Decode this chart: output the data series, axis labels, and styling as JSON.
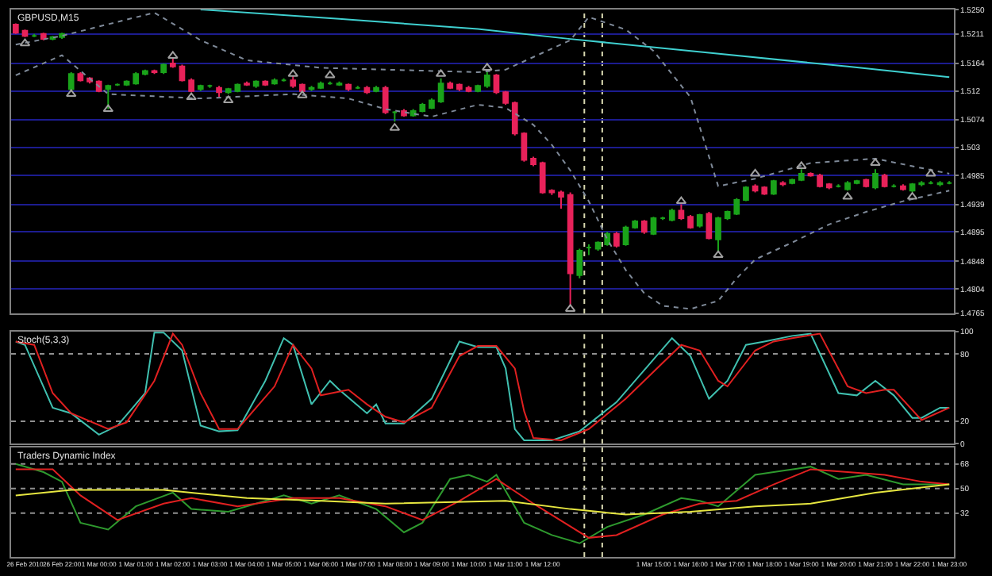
{
  "chart_data": [
    {
      "type": "candlestick",
      "title": "GBPUSD,M15",
      "ohlc": [
        [
          1.5226,
          1.5228,
          1.5211,
          1.5213
        ],
        [
          1.5216,
          1.5218,
          1.5206,
          1.5208
        ],
        [
          1.5208,
          1.5211,
          1.5206,
          1.5208
        ],
        [
          1.5211,
          1.5213,
          1.5201,
          1.5203
        ],
        [
          1.5203,
          1.5208,
          1.5201,
          1.5206
        ],
        [
          1.5206,
          1.5213,
          1.5203,
          1.5211
        ],
        [
          1.5123,
          1.515,
          1.512,
          1.5147
        ],
        [
          1.5147,
          1.515,
          1.5135,
          1.5137
        ],
        [
          1.514,
          1.5142,
          1.5132,
          1.5135
        ],
        [
          1.5135,
          1.5137,
          1.5118,
          1.512
        ],
        [
          1.5123,
          1.513,
          1.5091,
          1.5128
        ],
        [
          1.513,
          1.5132,
          1.5128,
          1.513
        ],
        [
          1.513,
          1.5137,
          1.5128,
          1.5135
        ],
        [
          1.5132,
          1.515,
          1.513,
          1.5147
        ],
        [
          1.5147,
          1.5154,
          1.5145,
          1.5152
        ],
        [
          1.5152,
          1.5154,
          1.5147,
          1.515
        ],
        [
          1.515,
          1.5164,
          1.5147,
          1.5162
        ],
        [
          1.5164,
          1.5172,
          1.5157,
          1.5159
        ],
        [
          1.5159,
          1.5162,
          1.5135,
          1.5137
        ],
        [
          1.5137,
          1.514,
          1.5118,
          1.512
        ],
        [
          1.5123,
          1.513,
          1.512,
          1.5128
        ],
        [
          1.5128,
          1.513,
          1.5125,
          1.5128
        ],
        [
          1.5125,
          1.5128,
          1.511,
          1.5118
        ],
        [
          1.5118,
          1.5125,
          1.5115,
          1.5123
        ],
        [
          1.512,
          1.5132,
          1.5118,
          1.513
        ],
        [
          1.5132,
          1.5135,
          1.5128,
          1.513
        ],
        [
          1.5128,
          1.5137,
          1.5125,
          1.5135
        ],
        [
          1.5135,
          1.5137,
          1.5128,
          1.513
        ],
        [
          1.5132,
          1.514,
          1.513,
          1.5137
        ],
        [
          1.5137,
          1.514,
          1.5135,
          1.5137
        ],
        [
          1.5137,
          1.5145,
          1.5125,
          1.5128
        ],
        [
          1.513,
          1.5132,
          1.5118,
          1.512
        ],
        [
          1.5123,
          1.5128,
          1.512,
          1.5125
        ],
        [
          1.5125,
          1.5135,
          1.5123,
          1.5132
        ],
        [
          1.5132,
          1.5135,
          1.513,
          1.5132
        ],
        [
          1.513,
          1.5135,
          1.5128,
          1.5132
        ],
        [
          1.513,
          1.5132,
          1.512,
          1.5123
        ],
        [
          1.5125,
          1.5128,
          1.5123,
          1.5125
        ],
        [
          1.5125,
          1.5128,
          1.5115,
          1.5118
        ],
        [
          1.512,
          1.5128,
          1.5118,
          1.5125
        ],
        [
          1.5125,
          1.5128,
          1.5083,
          1.5086
        ],
        [
          1.5086,
          1.5088,
          1.5071,
          1.5086
        ],
        [
          1.5088,
          1.5091,
          1.5079,
          1.5081
        ],
        [
          1.5081,
          1.5091,
          1.5079,
          1.5088
        ],
        [
          1.5088,
          1.5101,
          1.5086,
          1.5098
        ],
        [
          1.5093,
          1.5108,
          1.5091,
          1.5105
        ],
        [
          1.5103,
          1.514,
          1.5101,
          1.5132
        ],
        [
          1.5132,
          1.5135,
          1.5123,
          1.5125
        ],
        [
          1.513,
          1.5132,
          1.512,
          1.5123
        ],
        [
          1.5125,
          1.5128,
          1.5118,
          1.512
        ],
        [
          1.512,
          1.513,
          1.5118,
          1.5128
        ],
        [
          1.5128,
          1.5152,
          1.5125,
          1.5145
        ],
        [
          1.5145,
          1.5147,
          1.5115,
          1.5118
        ],
        [
          1.5118,
          1.512,
          1.5098,
          1.5101
        ],
        [
          1.5101,
          1.5103,
          1.5049,
          1.5052
        ],
        [
          1.5052,
          1.5054,
          1.5007,
          1.501
        ],
        [
          1.5012,
          1.5015,
          1.5,
          1.5003
        ],
        [
          1.5005,
          1.5007,
          1.4956,
          1.4958
        ],
        [
          1.4961,
          1.4963,
          1.4954,
          1.4958
        ],
        [
          1.4958,
          1.4961,
          1.4932,
          1.4951
        ],
        [
          1.4954,
          1.4958,
          1.4777,
          1.4829
        ],
        [
          1.4826,
          1.4868,
          1.4821,
          1.4865
        ],
        [
          1.487,
          1.4875,
          1.4858,
          1.487
        ],
        [
          1.4868,
          1.488,
          1.4865,
          1.4878
        ],
        [
          1.4875,
          1.4895,
          1.4873,
          1.4892
        ],
        [
          1.4892,
          1.4895,
          1.487,
          1.4873
        ],
        [
          1.4875,
          1.4905,
          1.4873,
          1.4902
        ],
        [
          1.4902,
          1.4914,
          1.49,
          1.4912
        ],
        [
          1.4912,
          1.4914,
          1.4892,
          1.4895
        ],
        [
          1.4892,
          1.4919,
          1.489,
          1.4917
        ],
        [
          1.4917,
          1.4919,
          1.4914,
          1.4917
        ],
        [
          1.4914,
          1.4932,
          1.4912,
          1.4929
        ],
        [
          1.4929,
          1.4939,
          1.4914,
          1.4917
        ],
        [
          1.4919,
          1.4922,
          1.49,
          1.4902
        ],
        [
          1.4905,
          1.4924,
          1.4902,
          1.4922
        ],
        [
          1.4924,
          1.4927,
          1.4883,
          1.4885
        ],
        [
          1.4883,
          1.4919,
          1.4865,
          1.4917
        ],
        [
          1.4917,
          1.4929,
          1.4914,
          1.4927
        ],
        [
          1.4924,
          1.4949,
          1.4922,
          1.4946
        ],
        [
          1.4946,
          1.4968,
          1.4944,
          1.4966
        ],
        [
          1.4968,
          1.4971,
          1.4958,
          1.4961
        ],
        [
          1.4966,
          1.4968,
          1.4954,
          1.4956
        ],
        [
          1.4956,
          1.4978,
          1.4954,
          1.4976
        ],
        [
          1.4973,
          1.4976,
          1.4968,
          1.4971
        ],
        [
          1.4973,
          1.498,
          1.4971,
          1.4978
        ],
        [
          1.4978,
          1.4995,
          1.4976,
          1.4988
        ],
        [
          1.4988,
          1.499,
          1.4983,
          1.4985
        ],
        [
          1.4985,
          1.4988,
          1.4966,
          1.4968
        ],
        [
          1.4971,
          1.4973,
          1.4963,
          1.4966
        ],
        [
          1.4968,
          1.4971,
          1.4966,
          1.4968
        ],
        [
          1.4963,
          1.4976,
          1.4961,
          1.4973
        ],
        [
          1.4973,
          1.4978,
          1.4971,
          1.4976
        ],
        [
          1.4978,
          1.498,
          1.4966,
          1.4968
        ],
        [
          1.4966,
          1.4995,
          1.4963,
          1.4988
        ],
        [
          1.4985,
          1.4988,
          1.4966,
          1.4968
        ],
        [
          1.4968,
          1.4971,
          1.4966,
          1.4968
        ],
        [
          1.4968,
          1.4971,
          1.4961,
          1.4963
        ],
        [
          1.4961,
          1.4973,
          1.4958,
          1.4971
        ],
        [
          1.4971,
          1.4976,
          1.4968,
          1.4973
        ],
        [
          1.4973,
          1.4976,
          1.4971,
          1.4973
        ],
        [
          1.4971,
          1.4976,
          1.4968,
          1.4973
        ],
        [
          1.4973,
          1.4976,
          1.4971,
          1.4973
        ]
      ],
      "colors": [
        "#e8225a",
        "#e8225a",
        "#1aa31a",
        "#e8225a",
        "#1aa31a",
        "#1aa31a",
        "#1aa31a",
        "#e8225a",
        "#e8225a",
        "#e8225a",
        "#1aa31a",
        "#1aa31a",
        "#1aa31a",
        "#1aa31a",
        "#1aa31a",
        "#e8225a",
        "#1aa31a",
        "#e8225a",
        "#e8225a",
        "#e8225a",
        "#1aa31a",
        "#1aa31a",
        "#e8225a",
        "#1aa31a",
        "#1aa31a",
        "#e8225a",
        "#1aa31a",
        "#e8225a",
        "#1aa31a",
        "#1aa31a",
        "#e8225a",
        "#e8225a",
        "#1aa31a",
        "#1aa31a",
        "#1aa31a",
        "#1aa31a",
        "#e8225a",
        "#1aa31a",
        "#e8225a",
        "#1aa31a",
        "#e8225a",
        "#1aa31a",
        "#e8225a",
        "#1aa31a",
        "#1aa31a",
        "#1aa31a",
        "#1aa31a",
        "#e8225a",
        "#e8225a",
        "#e8225a",
        "#1aa31a",
        "#1aa31a",
        "#e8225a",
        "#e8225a",
        "#e8225a",
        "#e8225a",
        "#e8225a",
        "#e8225a",
        "#e8225a",
        "#e8225a",
        "#e8225a",
        "#1aa31a",
        "#1aa31a",
        "#1aa31a",
        "#1aa31a",
        "#e8225a",
        "#1aa31a",
        "#1aa31a",
        "#e8225a",
        "#1aa31a",
        "#1aa31a",
        "#1aa31a",
        "#e8225a",
        "#e8225a",
        "#1aa31a",
        "#e8225a",
        "#1aa31a",
        "#1aa31a",
        "#1aa31a",
        "#1aa31a",
        "#e8225a",
        "#e8225a",
        "#1aa31a",
        "#e8225a",
        "#1aa31a",
        "#1aa31a",
        "#e8225a",
        "#e8225a",
        "#e8225a",
        "#1aa31a",
        "#1aa31a",
        "#1aa31a",
        "#e8225a",
        "#1aa31a",
        "#e8225a",
        "#1aa31a",
        "#e8225a",
        "#1aa31a",
        "#1aa31a",
        "#1aa31a",
        "#1aa31a",
        "#1aa31a"
      ],
      "series": [
        {
          "type": "line",
          "color": "#3fd0d0",
          "values": [
            null,
            null,
            null,
            null,
            null,
            null,
            null,
            null,
            null,
            null,
            null,
            null,
            null,
            null,
            null,
            null,
            null,
            null,
            null,
            null,
            1.525,
            null,
            null,
            null,
            null,
            null,
            null,
            null,
            null,
            null,
            null,
            null,
            null,
            null,
            null,
            1.5235,
            null,
            null,
            null,
            null,
            null,
            null,
            null,
            null,
            null,
            null,
            null,
            null,
            null,
            null,
            1.5219,
            null,
            null,
            null,
            null,
            null,
            null,
            null,
            null,
            null,
            1.5203,
            null,
            null,
            null,
            null,
            null,
            null,
            null,
            null,
            null,
            null,
            null,
            null,
            null,
            null,
            1.5181,
            null,
            null,
            null,
            null,
            null,
            null,
            null,
            null,
            null,
            null,
            null,
            null,
            null,
            null,
            1.5159,
            null,
            null,
            null,
            null,
            null,
            null,
            null,
            null,
            null,
            null,
            1.5142
          ]
        },
        {
          "type": "line",
          "color": "#7f8a99",
          "line_style": "dotted",
          "values": [
            1.5194,
            null,
            null,
            null,
            null,
            1.5208,
            null,
            null,
            null,
            null,
            null,
            null,
            null,
            null,
            null,
            1.5245,
            null,
            null,
            null,
            null,
            1.5201,
            null,
            null,
            null,
            null,
            1.5169,
            null,
            null,
            null,
            null,
            null,
            null,
            null,
            1.5157,
            null,
            null,
            null,
            null,
            null,
            null,
            null,
            null,
            null,
            null,
            null,
            1.5152,
            null,
            null,
            null,
            null,
            1.515,
            null,
            null,
            1.5154,
            null,
            null,
            null,
            null,
            null,
            null,
            1.5201,
            null,
            1.5238,
            null,
            null,
            null,
            1.5218,
            null,
            null,
            1.5184,
            null,
            null,
            null,
            1.511,
            null,
            null,
            1.4968,
            null,
            null,
            null,
            1.498,
            null,
            null,
            null,
            null,
            null,
            1.5005,
            null,
            null,
            null,
            null,
            null,
            null,
            1.5012,
            null,
            null,
            null,
            null,
            null,
            null,
            null,
            1.4988
          ]
        },
        {
          "type": "line",
          "color": "#7f8a99",
          "line_style": "dotted",
          "values": [
            1.5145,
            null,
            null,
            null,
            null,
            1.5177,
            null,
            null,
            null,
            null,
            1.5115,
            null,
            null,
            null,
            null,
            null,
            null,
            null,
            null,
            null,
            1.5108,
            null,
            null,
            null,
            null,
            null,
            null,
            null,
            null,
            null,
            1.5115,
            null,
            null,
            null,
            null,
            null,
            1.5108,
            null,
            null,
            null,
            1.5091,
            null,
            null,
            null,
            null,
            1.5079,
            null,
            null,
            null,
            null,
            1.5098,
            null,
            null,
            1.5093,
            null,
            null,
            1.5066,
            null,
            1.5034,
            null,
            1.4993,
            null,
            1.4944,
            null,
            1.4883,
            null,
            1.4834,
            null,
            1.4797,
            null,
            1.4777,
            null,
            null,
            1.4772,
            null,
            null,
            1.4785,
            null,
            1.4821,
            null,
            1.4851,
            null,
            null,
            null,
            1.4878,
            null,
            null,
            null,
            1.4907,
            null,
            null,
            null,
            1.4927,
            null,
            null,
            null,
            1.4944,
            null,
            null,
            null,
            null,
            1.4961
          ]
        },
        {
          "type": "scatter",
          "color": "#a0a0a0",
          "marker": "triangle",
          "values": [
            null,
            null,
            null,
            null,
            null,
            null,
            null,
            null,
            null,
            null,
            null,
            null,
            null,
            null,
            null,
            null,
            null,
            1.5176,
            null,
            null,
            null,
            null,
            null,
            null,
            null,
            null,
            null,
            null,
            null,
            null,
            1.5147,
            null,
            null,
            null,
            1.5145,
            null,
            null,
            null,
            null,
            null,
            null,
            null,
            null,
            null,
            null,
            null,
            1.5147,
            null,
            null,
            null,
            null,
            1.5157,
            null,
            null,
            null,
            null,
            null,
            null,
            null,
            null,
            null,
            null,
            null,
            null,
            null,
            null,
            null,
            null,
            null,
            null,
            null,
            null,
            1.4944,
            null,
            null,
            null,
            null,
            null,
            null,
            null,
            1.4988,
            null,
            null,
            null,
            null,
            1.5,
            null,
            null,
            null,
            null,
            null,
            null,
            null,
            1.5005,
            null,
            null,
            null,
            null,
            null,
            1.4988,
            null,
            null
          ]
        },
        {
          "type": "scatter",
          "color": "#a0a0a0",
          "marker": "triangle",
          "values": [
            null,
            1.5196,
            null,
            null,
            null,
            null,
            1.5115,
            null,
            null,
            null,
            1.5091,
            null,
            null,
            null,
            null,
            null,
            null,
            null,
            null,
            1.511,
            null,
            null,
            null,
            1.5105,
            null,
            null,
            null,
            null,
            null,
            null,
            null,
            1.5113,
            null,
            null,
            null,
            null,
            null,
            null,
            null,
            null,
            null,
            1.5061,
            null,
            null,
            null,
            null,
            null,
            null,
            null,
            null,
            null,
            null,
            null,
            null,
            null,
            null,
            null,
            null,
            null,
            null,
            1.4772,
            null,
            null,
            null,
            null,
            null,
            null,
            null,
            null,
            null,
            null,
            null,
            null,
            null,
            null,
            null,
            1.4858,
            null,
            null,
            null,
            null,
            null,
            null,
            null,
            null,
            null,
            null,
            null,
            null,
            null,
            1.4951,
            null,
            null,
            null,
            null,
            null,
            null,
            1.4951,
            null,
            null,
            null,
            null
          ]
        }
      ],
      "ylim": [
        1.4765,
        1.525
      ],
      "yticks": [
        {
          "value": 1.525,
          "label": "1.5250"
        },
        1.5211,
        1.5164,
        1.512,
        1.5074,
        1.503,
        1.4985,
        1.4939,
        1.4895,
        1.4848,
        1.4804,
        1.4765
      ],
      "grid": "y",
      "tick_labels": "y"
    },
    {
      "type": "line",
      "title": "Stoch(5,3,3)",
      "series": [
        {
          "color": "#40c0b0",
          "values": [
            91,
            88,
            null,
            null,
            32,
            null,
            27,
            null,
            null,
            8,
            null,
            16,
            null,
            null,
            45,
            99,
            99,
            null,
            83,
            null,
            16,
            null,
            11,
            null,
            12,
            null,
            null,
            56,
            null,
            94,
            88,
            null,
            35,
            null,
            56,
            48,
            null,
            null,
            27,
            35,
            18,
            null,
            18,
            null,
            null,
            40,
            null,
            null,
            91,
            null,
            86,
            null,
            86,
            67,
            13,
            3,
            null,
            null,
            3,
            null,
            null,
            11,
            null,
            null,
            null,
            37,
            null,
            null,
            null,
            null,
            null,
            94,
            null,
            78,
            null,
            40,
            null,
            56,
            null,
            88,
            null,
            91,
            null,
            null,
            96,
            null,
            98,
            null,
            null,
            45,
            null,
            43,
            null,
            56,
            null,
            43,
            null,
            23,
            23,
            null,
            32,
            32
          ]
        },
        {
          "color": "#e02020",
          "values": [
            91,
            null,
            88,
            null,
            45,
            null,
            27,
            null,
            null,
            null,
            13,
            null,
            19,
            null,
            null,
            56,
            null,
            98,
            88,
            null,
            45,
            null,
            13,
            null,
            13,
            null,
            null,
            null,
            51,
            null,
            88,
            null,
            67,
            43,
            null,
            null,
            48,
            null,
            35,
            null,
            24,
            null,
            19,
            null,
            null,
            32,
            null,
            null,
            78,
            null,
            87,
            null,
            87,
            null,
            67,
            29,
            5,
            null,
            null,
            3,
            null,
            null,
            13,
            null,
            null,
            null,
            40,
            null,
            null,
            null,
            null,
            null,
            88,
            null,
            83,
            null,
            56,
            51,
            null,
            null,
            83,
            null,
            91,
            null,
            94,
            null,
            null,
            98,
            null,
            null,
            51,
            null,
            45,
            null,
            48,
            48,
            null,
            null,
            21,
            null,
            null,
            32
          ]
        }
      ],
      "ylim": [
        0,
        100
      ],
      "yticks": [
        0,
        20,
        80,
        100
      ],
      "tick_labels": "y",
      "ref_lines": [
        {
          "axis": "y",
          "value": 80,
          "color": "#909090",
          "line_style": "dotted"
        },
        {
          "axis": "y",
          "value": 20,
          "color": "#909090",
          "line_style": "dotted"
        }
      ]
    },
    {
      "type": "line",
      "title": "Traders Dynamic Index",
      "categories": [
        null,
        "26 Feb 2010",
        null,
        null,
        null,
        "26 Feb 22:00",
        null,
        null,
        null,
        "1 Mar 00:00",
        null,
        null,
        null,
        "1 Mar 01:00",
        null,
        null,
        null,
        "1 Mar 02:00",
        null,
        null,
        null,
        "1 Mar 03:00",
        null,
        null,
        null,
        "1 Mar 04:00",
        null,
        null,
        null,
        "1 Mar 05:00",
        null,
        null,
        null,
        "1 Mar 06:00",
        null,
        null,
        null,
        "1 Mar 07:00",
        null,
        null,
        null,
        "1 Mar 08:00",
        null,
        null,
        null,
        "1 Mar 09:00",
        null,
        null,
        null,
        "1 Mar 10:00",
        null,
        null,
        null,
        "1 Mar 11:00",
        null,
        null,
        null,
        "1 Mar 12:00",
        null,
        null,
        null,
        null,
        null,
        null,
        null,
        null,
        null,
        null,
        null,
        "1 Mar 15:00",
        null,
        null,
        null,
        "1 Mar 16:00",
        null,
        null,
        null,
        "1 Mar 17:00",
        null,
        null,
        null,
        "1 Mar 18:00",
        null,
        null,
        null,
        "1 Mar 19:00",
        null,
        null,
        null,
        "1 Mar 20:00",
        null,
        null,
        null,
        "1 Mar 21:00",
        null,
        null,
        null,
        "1 Mar 22:00",
        null,
        null,
        null,
        "1 Mar 23:00"
      ],
      "series": [
        {
          "color": "#2e9a2e",
          "values": [
            68,
            null,
            null,
            62,
            null,
            55,
            null,
            25,
            null,
            null,
            20,
            null,
            null,
            37,
            null,
            null,
            null,
            47,
            null,
            35,
            null,
            null,
            null,
            33,
            null,
            null,
            39,
            null,
            null,
            45,
            null,
            null,
            39,
            null,
            null,
            45,
            null,
            null,
            null,
            35,
            null,
            null,
            18,
            null,
            25,
            null,
            null,
            57,
            null,
            60,
            null,
            55,
            60,
            null,
            null,
            25,
            null,
            null,
            16,
            null,
            null,
            10,
            null,
            null,
            22,
            null,
            null,
            null,
            31,
            null,
            null,
            null,
            43,
            null,
            41,
            null,
            37,
            null,
            null,
            null,
            60,
            null,
            62,
            null,
            null,
            null,
            66,
            null,
            null,
            57,
            null,
            null,
            60,
            null,
            null,
            null,
            53,
            null,
            53,
            null,
            null,
            53
          ]
        },
        {
          "color": "#e02020",
          "values": [
            64,
            null,
            null,
            null,
            64,
            null,
            null,
            45,
            null,
            null,
            null,
            27,
            null,
            null,
            null,
            null,
            39,
            null,
            null,
            43,
            null,
            null,
            null,
            null,
            37,
            null,
            null,
            null,
            null,
            null,
            43,
            null,
            null,
            null,
            null,
            43,
            null,
            null,
            null,
            null,
            37,
            null,
            null,
            null,
            27,
            null,
            null,
            null,
            41,
            null,
            null,
            null,
            57,
            null,
            null,
            null,
            39,
            null,
            null,
            null,
            null,
            null,
            14,
            null,
            null,
            16,
            null,
            null,
            null,
            null,
            31,
            null,
            null,
            null,
            39,
            null,
            null,
            null,
            41,
            null,
            null,
            null,
            53,
            null,
            null,
            null,
            64,
            null,
            null,
            null,
            62,
            null,
            null,
            null,
            60,
            null,
            null,
            null,
            55,
            null,
            null,
            53
          ]
        },
        {
          "color": "#e6e640",
          "values": [
            45,
            null,
            null,
            null,
            null,
            null,
            49,
            null,
            null,
            null,
            null,
            null,
            null,
            null,
            null,
            null,
            49,
            null,
            null,
            null,
            null,
            null,
            null,
            null,
            null,
            43,
            null,
            null,
            null,
            null,
            null,
            null,
            null,
            41,
            null,
            null,
            null,
            null,
            null,
            null,
            39,
            null,
            null,
            null,
            null,
            null,
            null,
            null,
            null,
            null,
            null,
            null,
            null,
            41,
            null,
            null,
            null,
            null,
            null,
            null,
            35,
            null,
            null,
            null,
            null,
            null,
            31,
            null,
            null,
            null,
            null,
            null,
            null,
            33,
            null,
            null,
            null,
            null,
            null,
            null,
            37,
            null,
            null,
            null,
            null,
            null,
            39,
            null,
            null,
            null,
            null,
            null,
            null,
            47,
            null,
            null,
            null,
            null,
            null,
            null,
            null,
            53
          ]
        }
      ],
      "ylim": [
        0,
        80
      ],
      "yticks": [
        32,
        50,
        68
      ],
      "ref_lines": [
        {
          "axis": "y",
          "value": 68,
          "color": "#909090",
          "line_style": "dotted"
        },
        {
          "axis": "y",
          "value": 50,
          "color": "#909090",
          "line_style": "dotted"
        },
        {
          "axis": "y",
          "value": 32,
          "color": "#909090",
          "line_style": "dotted"
        }
      ]
    }
  ]
}
